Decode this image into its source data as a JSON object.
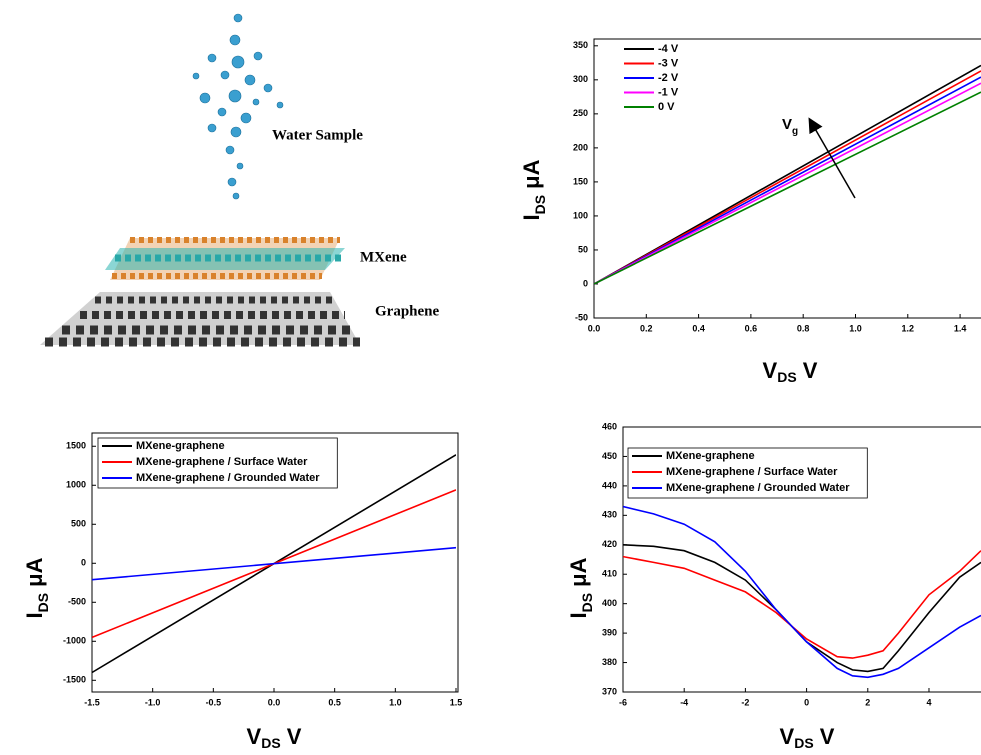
{
  "illustration": {
    "labels": [
      "Water Sample",
      "MXene",
      "Graphene"
    ]
  },
  "chart_data": [
    {
      "type": "line",
      "x": [
        0,
        1.48
      ],
      "series": [
        {
          "name": "-4 V",
          "color": "#000000",
          "values": [
            0,
            321
          ]
        },
        {
          "name": "-3 V",
          "color": "#ff0000",
          "values": [
            0,
            313
          ]
        },
        {
          "name": "-2 V",
          "color": "#0000ff",
          "values": [
            0,
            304
          ]
        },
        {
          "name": "-1 V",
          "color": "#ff00ff",
          "values": [
            0,
            295
          ]
        },
        {
          "name": "0 V",
          "color": "#008000",
          "values": [
            0,
            282
          ]
        }
      ],
      "xlim": [
        0,
        1.48
      ],
      "ylim": [
        -50,
        360
      ],
      "xticks": [
        {
          "value": 0,
          "label": "0.0"
        },
        0.2,
        0.4,
        0.6,
        0.8,
        {
          "value": 1,
          "label": "1.0"
        },
        1.2,
        1.4
      ],
      "yticks": [
        -50,
        0,
        50,
        100,
        150,
        200,
        250,
        300,
        350
      ],
      "x_label": {
        "text": "V",
        "sub": "DS",
        "after": " V"
      },
      "y_label": {
        "text": "I",
        "sub": "DS",
        "after": " μA"
      },
      "annotation": {
        "text": "V",
        "sub": "g"
      },
      "legend": "upper left"
    },
    {
      "type": "line",
      "x": [
        -1.5,
        1.5
      ],
      "series": [
        {
          "name": "MXene-graphene",
          "color": "#000000",
          "values": [
            -1400,
            1390
          ]
        },
        {
          "name": "MXene-graphene / Surface Water",
          "color": "#ff0000",
          "values": [
            -950,
            940
          ]
        },
        {
          "name": "MXene-graphene / Grounded Water",
          "color": "#0000ff",
          "values": [
            -210,
            200
          ]
        }
      ],
      "xlim": [
        -1.5,
        1.5
      ],
      "ylim": [
        -1650,
        1670
      ],
      "xticks": [
        -1.5,
        {
          "value": -1,
          "label": "-1.0"
        },
        -0.5,
        {
          "value": 0,
          "label": "0.0"
        },
        0.5,
        {
          "value": 1,
          "label": "1.0"
        },
        1.5
      ],
      "yticks": [
        -1500,
        -1000,
        -500,
        0,
        500,
        1000,
        1500
      ],
      "x_label": {
        "text": "V",
        "sub": "DS",
        "after": " V"
      },
      "y_label": {
        "text": "I",
        "sub": "DS",
        "after": " μA"
      },
      "legend": "upper left"
    },
    {
      "type": "line",
      "x": [
        -6,
        -5,
        -4,
        -3,
        -2,
        -1,
        0,
        1,
        1.5,
        2,
        2.5,
        3,
        4,
        5,
        5.7
      ],
      "series": [
        {
          "name": "MXene-graphene",
          "color": "#000000",
          "values": [
            420,
            419.5,
            418,
            414,
            408,
            398,
            387,
            380,
            377.5,
            377,
            378,
            384,
            397,
            409,
            414
          ]
        },
        {
          "name": "MXene-graphene / Surface Water",
          "color": "#ff0000",
          "values": [
            416,
            414,
            412,
            408,
            404,
            397,
            388,
            382,
            381.5,
            382.5,
            384,
            390,
            403,
            411,
            418
          ]
        },
        {
          "name": "MXene-graphene / Grounded Water",
          "color": "#0000ff",
          "values": [
            433,
            430.5,
            427,
            421,
            411,
            398,
            387,
            378,
            375.5,
            375,
            376,
            378,
            385,
            392,
            396
          ]
        }
      ],
      "xlim": [
        -6,
        5.7
      ],
      "ylim": [
        370,
        460
      ],
      "xticks": [
        -6,
        -4,
        -2,
        0,
        2,
        4
      ],
      "yticks": [
        370,
        380,
        390,
        400,
        410,
        420,
        430,
        440,
        450,
        460
      ],
      "x_label": {
        "text": "V",
        "sub": "DS",
        "after": " V"
      },
      "y_label": {
        "text": "I",
        "sub": "DS",
        "after": " μA"
      },
      "legend": "upper left"
    }
  ]
}
